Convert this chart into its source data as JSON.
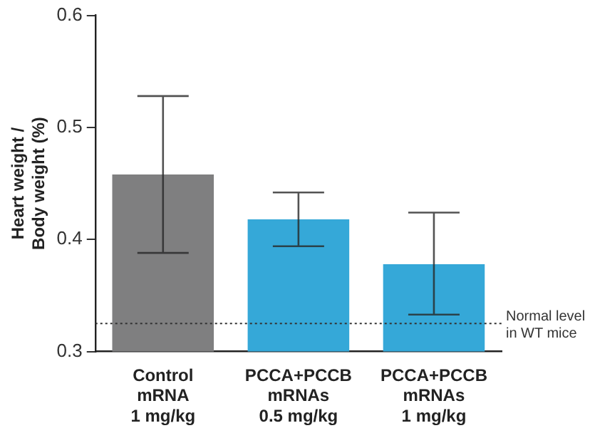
{
  "chart_data": {
    "type": "bar",
    "ylabel": "Heart weight /\nBody weight (%)",
    "categories": [
      "Control\nmRNA\n1 mg/kg",
      "PCCA+PCCB\nmRNAs\n0.5 mg/kg",
      "PCCA+PCCB\nmRNAs\n1 mg/kg"
    ],
    "values": [
      0.458,
      0.418,
      0.378
    ],
    "colors": [
      "#7f7f80",
      "#35a8d8",
      "#35a8d8"
    ],
    "errors": [
      [
        0.388,
        0.528
      ],
      [
        0.394,
        0.442
      ],
      [
        0.333,
        0.424
      ]
    ],
    "ylim": [
      0.3,
      0.6
    ],
    "yticks": [
      0.3,
      0.4,
      0.5,
      0.6
    ],
    "grid": false,
    "legend": false,
    "ref_lines": [
      {
        "axis": "y",
        "value": 0.325,
        "label": "Normal level\nin WT mice",
        "line_style": "dotted",
        "color": "#333333"
      }
    ]
  }
}
